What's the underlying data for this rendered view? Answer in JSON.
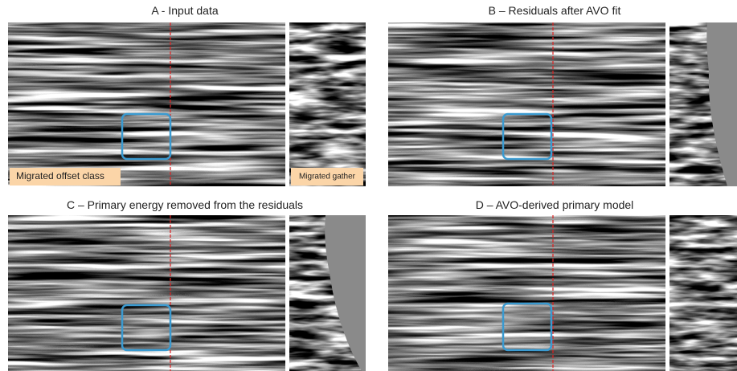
{
  "panels": [
    {
      "title": "A - Input data",
      "section_label": "Migrated offset class",
      "gather_label": "Migrated gather"
    },
    {
      "title": "B – Residuals after AVO fit"
    },
    {
      "title": "C – Primary energy removed from the residuals"
    },
    {
      "title": "D – AVO-derived primary model"
    }
  ]
}
